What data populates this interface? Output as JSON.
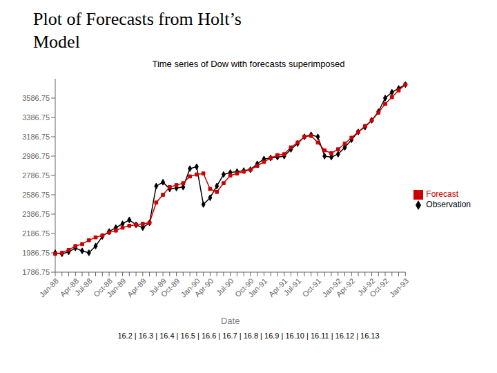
{
  "chart_data": {
    "type": "line",
    "title": "Plot of Forecasts from Holt’s\nModel",
    "subtitle": "Time series of Dow with forecasts superimposed",
    "xlabel": "Date",
    "annotations": [
      "16.2 | 16.3 | 16.4 | 16.5 | 16.6 | 16.7 | 16.8 | 16.9 | 16.10 | 16.11 | 16.12 | 16.13"
    ],
    "categories": [
      "Jan-88",
      null,
      null,
      "Apr-88",
      null,
      "Jul-88",
      null,
      null,
      "Oct-88",
      null,
      "Jan-89",
      null,
      null,
      "Apr-89",
      null,
      null,
      "Jul-89",
      null,
      "Oct-89",
      null,
      null,
      "Jan-90",
      null,
      "Apr-90",
      null,
      null,
      "Jul-90",
      null,
      null,
      "Oct-90",
      null,
      "Jan-91",
      null,
      null,
      "Apr-91",
      null,
      "Jul-91",
      null,
      null,
      "Oct-91",
      null,
      null,
      "Jan-92",
      null,
      "Apr-92",
      null,
      null,
      "Jul-92",
      null,
      "Oct-92",
      null,
      null,
      "Jan-93"
    ],
    "series": [
      {
        "name": "Observation",
        "color": "#000000",
        "marker": "diamond",
        "values": [
          1986.75,
          1976.75,
          1996.75,
          2036.75,
          2006.75,
          1986.75,
          2056.75,
          2156.75,
          2206.75,
          2246.75,
          2286.75,
          2326.75,
          2276.75,
          2246.75,
          2296.75,
          2676.75,
          2716.75,
          2646.75,
          2656.75,
          2666.75,
          2856.75,
          2876.75,
          2486.75,
          2556.75,
          2676.75,
          2796.75,
          2816.75,
          2826.75,
          2836.75,
          2846.75,
          2906.75,
          2956.75,
          2966.75,
          2976.75,
          2986.75,
          3056.75,
          3116.75,
          3186.75,
          3206.75,
          3186.75,
          2986.75,
          2976.75,
          3006.75,
          3076.75,
          3156.75,
          3236.75,
          3286.75,
          3356.75,
          3446.75,
          3586.75,
          3646.75,
          3686.75,
          3726.75
        ]
      },
      {
        "name": "Forecast",
        "color": "#cc0000",
        "marker": "square",
        "values": [
          1976.75,
          1986.75,
          2016.75,
          2056.75,
          2076.75,
          2116.75,
          2146.75,
          2166.75,
          2196.75,
          2216.75,
          2246.75,
          2266.75,
          2276.75,
          2286.75,
          2296.75,
          2506.75,
          2586.75,
          2666.75,
          2686.75,
          2706.75,
          2776.75,
          2796.75,
          2806.75,
          2646.75,
          2616.75,
          2706.75,
          2786.75,
          2806.75,
          2826.75,
          2846.75,
          2886.75,
          2926.75,
          2966.75,
          2996.75,
          3006.75,
          3076.75,
          3126.75,
          3186.75,
          3196.75,
          3126.75,
          3046.75,
          3016.75,
          3056.75,
          3116.75,
          3176.75,
          3236.75,
          3296.75,
          3356.75,
          3436.75,
          3526.75,
          3596.75,
          3666.75,
          3726.75
        ]
      }
    ],
    "ylim": [
      1786.75,
      3786.75
    ],
    "yticks": [
      1786.75,
      1986.75,
      2186.75,
      2386.75,
      2586.75,
      2786.75,
      2986.75,
      3186.75,
      3386.75,
      3586.75
    ],
    "grid": false,
    "legend": "right"
  }
}
